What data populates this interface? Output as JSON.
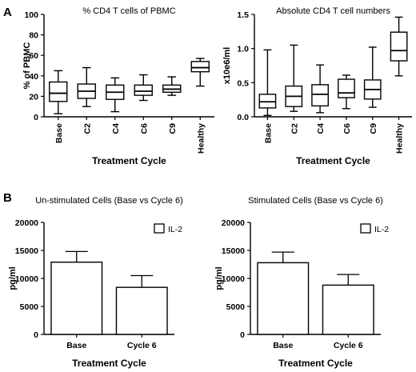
{
  "panels": {
    "a": {
      "letter": "A",
      "xlabel": "Treatment Cycle"
    },
    "b": {
      "letter": "B",
      "xlabel": "Treatment Cycle"
    }
  },
  "chart_data": [
    {
      "type": "box",
      "title": "% CD4 T cells of PBMC",
      "xlabel": "Treatment Cycle",
      "ylabel": "% of PBMC",
      "ylim": [
        0,
        100
      ],
      "yticks": [
        "0",
        "20",
        "40",
        "60",
        "80",
        "100"
      ],
      "categories": [
        "Base",
        "C2",
        "C4",
        "C6",
        "C9",
        "Healthy"
      ],
      "boxes": [
        {
          "min": 3,
          "q1": 15,
          "median": 23,
          "q3": 34,
          "max": 45
        },
        {
          "min": 10,
          "q1": 18,
          "median": 25,
          "q3": 32,
          "max": 48
        },
        {
          "min": 5,
          "q1": 17,
          "median": 24,
          "q3": 31,
          "max": 38
        },
        {
          "min": 16,
          "q1": 21,
          "median": 25,
          "q3": 31,
          "max": 41
        },
        {
          "min": 21,
          "q1": 24,
          "median": 27,
          "q3": 31,
          "max": 39
        },
        {
          "min": 30,
          "q1": 44,
          "median": 48,
          "q3": 54,
          "max": 57
        }
      ],
      "grid": false
    },
    {
      "type": "box",
      "title": "Absolute CD4 T cell numbers",
      "xlabel": "Treatment Cycle",
      "ylabel": "x10e6/ml",
      "ylim": [
        0,
        1.5
      ],
      "yticks": [
        "0.0",
        "0.5",
        "1.0",
        "1.5"
      ],
      "categories": [
        "Base",
        "C2",
        "C4",
        "C6",
        "C9",
        "Healthy"
      ],
      "boxes": [
        {
          "min": 0.02,
          "q1": 0.13,
          "median": 0.22,
          "q3": 0.33,
          "max": 0.98
        },
        {
          "min": 0.08,
          "q1": 0.15,
          "median": 0.3,
          "q3": 0.45,
          "max": 1.05
        },
        {
          "min": 0.06,
          "q1": 0.16,
          "median": 0.33,
          "q3": 0.47,
          "max": 0.76
        },
        {
          "min": 0.12,
          "q1": 0.28,
          "median": 0.35,
          "q3": 0.55,
          "max": 0.61
        },
        {
          "min": 0.14,
          "q1": 0.26,
          "median": 0.4,
          "q3": 0.54,
          "max": 1.02
        },
        {
          "min": 0.6,
          "q1": 0.82,
          "median": 0.97,
          "q3": 1.24,
          "max": 1.46
        }
      ],
      "grid": false
    },
    {
      "type": "bar",
      "title": "Un-stimulated Cells (Base vs Cycle 6)",
      "xlabel": "Treatment Cycle",
      "ylabel": "pg/ml",
      "ylim": [
        0,
        20000
      ],
      "yticks": [
        "0",
        "5000",
        "10000",
        "15000",
        "20000"
      ],
      "categories": [
        "Base",
        "Cycle 6"
      ],
      "series": [
        {
          "name": "IL-2",
          "values": [
            12900,
            8400
          ],
          "errors": [
            1900,
            2100
          ]
        }
      ],
      "legend": "top-right",
      "grid": false
    },
    {
      "type": "bar",
      "title": "Stimulated Cells (Base vs Cycle 6)",
      "xlabel": "Treatment Cycle",
      "ylabel": "pg/ml",
      "ylim": [
        0,
        20000
      ],
      "yticks": [
        "0",
        "5000",
        "10000",
        "15000",
        "20000"
      ],
      "categories": [
        "Base",
        "Cycle 6"
      ],
      "series": [
        {
          "name": "IL-2",
          "values": [
            12800,
            8800
          ],
          "errors": [
            1900,
            1900
          ]
        }
      ],
      "legend": "top-right",
      "grid": false
    }
  ]
}
